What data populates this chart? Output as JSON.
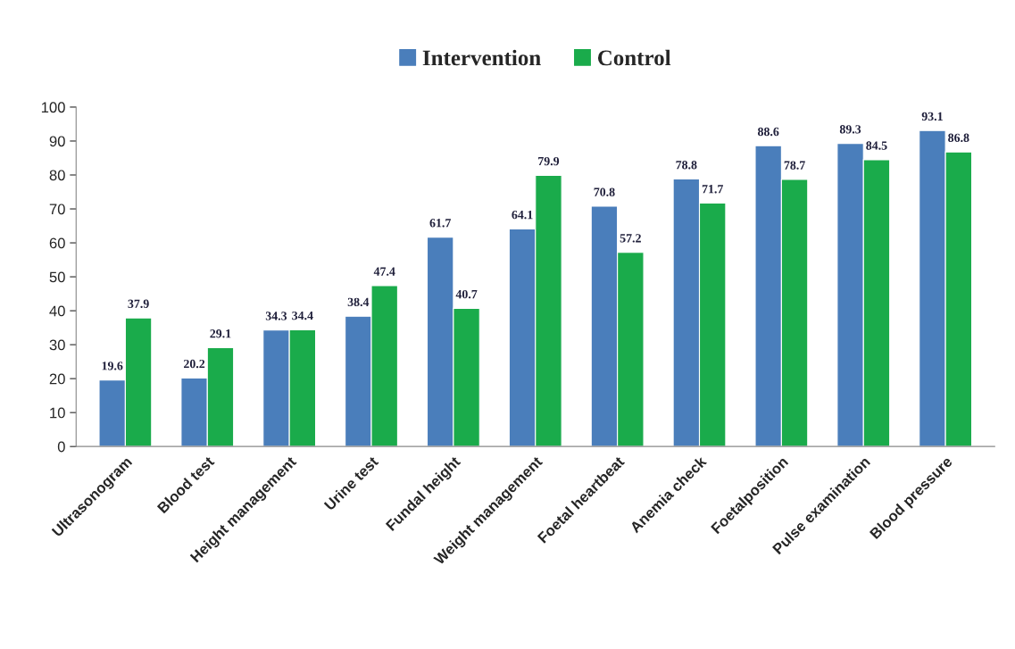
{
  "chart_data": {
    "type": "bar",
    "categories": [
      "Ultrasonogram",
      "Blood test",
      "Height management",
      "Urine test",
      "Fundal height",
      "Weight management",
      "Foetal heartbeat",
      "Anemia check",
      "Foetalposition",
      "Pulse examination",
      "Blood pressure"
    ],
    "series": [
      {
        "name": "Intervention",
        "color": "#4a7ebb",
        "values": [
          19.6,
          20.2,
          34.3,
          38.4,
          61.7,
          64.1,
          70.8,
          78.8,
          88.6,
          89.3,
          93.1
        ]
      },
      {
        "name": "Control",
        "color": "#1aab4b",
        "values": [
          37.9,
          29.1,
          34.4,
          47.4,
          40.7,
          79.9,
          57.2,
          71.7,
          78.7,
          84.5,
          86.8
        ]
      }
    ],
    "ylim": [
      0,
      100
    ],
    "yticks": [
      0,
      10,
      20,
      30,
      40,
      50,
      60,
      70,
      80,
      90,
      100
    ],
    "data_labels": true,
    "legend": "top",
    "grid": false
  }
}
